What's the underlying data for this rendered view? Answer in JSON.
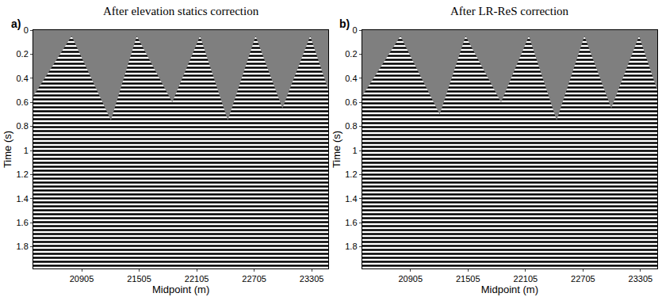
{
  "chart_data": [
    {
      "type": "area",
      "panel_label": "a)",
      "title": "After elevation statics correction",
      "x_label": "Midpoint (m)",
      "y_label": "Time (s)",
      "x": [
        20400,
        20800,
        21210,
        21480,
        21850,
        22140,
        22430,
        22720,
        23000,
        23290,
        23480
      ],
      "values": [
        0.55,
        0.05,
        0.75,
        0.05,
        0.6,
        0.05,
        0.75,
        0.05,
        0.65,
        0.05,
        0.5
      ],
      "color": "#000000",
      "xlim": [
        20400,
        23480
      ],
      "xticks": [
        20905,
        21505,
        22105,
        22705,
        23305
      ],
      "ylim": [
        1.98,
        0
      ],
      "yticks": [
        0,
        0.2,
        0.4,
        0.6,
        0.8,
        1,
        1.2,
        1.4,
        1.6,
        1.8
      ]
    },
    {
      "type": "area",
      "panel_label": "b)",
      "title": "After LR-ReS correction",
      "x_label": "Midpoint (m)",
      "y_label": "Time (s)",
      "x": [
        20400,
        20800,
        21210,
        21480,
        21850,
        22140,
        22430,
        22720,
        23000,
        23290,
        23480
      ],
      "values": [
        0.55,
        0.05,
        0.7,
        0.05,
        0.6,
        0.05,
        0.75,
        0.05,
        0.65,
        0.05,
        0.5
      ],
      "color": "#000000",
      "xlim": [
        20400,
        23480
      ],
      "xticks": [
        20905,
        21505,
        22105,
        22705,
        23305
      ],
      "ylim": [
        1.98,
        0
      ],
      "yticks": [
        0,
        0.2,
        0.4,
        0.6,
        0.8,
        1,
        1.2,
        1.4,
        1.6,
        1.8
      ]
    }
  ]
}
